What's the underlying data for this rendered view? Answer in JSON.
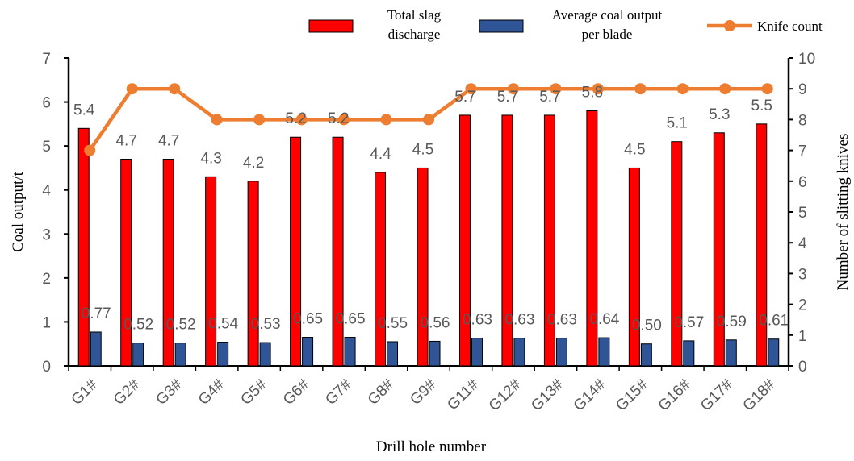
{
  "chart_data": {
    "type": "bar",
    "categories": [
      "G1#",
      "G2#",
      "G3#",
      "G4#",
      "G5#",
      "G6#",
      "G7#",
      "G8#",
      "G9#",
      "G11#",
      "G12#",
      "G13#",
      "G14#",
      "G15#",
      "G16#",
      "G17#",
      "G18#"
    ],
    "series": [
      {
        "name": "Total slag discharge",
        "type": "bar",
        "axis": "left",
        "color": "#ff0000",
        "values": [
          5.4,
          4.7,
          4.7,
          4.3,
          4.2,
          5.2,
          5.2,
          4.4,
          4.5,
          5.7,
          5.7,
          5.7,
          5.8,
          4.5,
          5.1,
          5.3,
          5.5
        ],
        "labels": [
          "5.4",
          "4.7",
          "4.7",
          "4.3",
          "4.2",
          "5.2",
          "5.2",
          "4.4",
          "4.5",
          "5.7",
          "5.7",
          "5.7",
          "5.8",
          "4.5",
          "5.1",
          "5.3",
          "5.5"
        ]
      },
      {
        "name": "Average coal output per blade",
        "name_lines": [
          "Average coal output",
          "per blade"
        ],
        "type": "bar",
        "axis": "left",
        "color": "#2f5597",
        "values": [
          0.77,
          0.52,
          0.52,
          0.54,
          0.53,
          0.65,
          0.65,
          0.55,
          0.56,
          0.63,
          0.63,
          0.63,
          0.64,
          0.5,
          0.57,
          0.59,
          0.61
        ],
        "labels": [
          "0.77",
          "0.52",
          "0.52",
          "0.54",
          "0.53",
          "0.65",
          "0.65",
          "0.55",
          "0.56",
          "0.63",
          "0.63",
          "0.63",
          "0.64",
          "0.50",
          "0.57",
          "0.59",
          "0.61"
        ]
      },
      {
        "name": "Knife count",
        "type": "line",
        "axis": "right",
        "color": "#ed7d31",
        "values": [
          7,
          9,
          9,
          8,
          8,
          8,
          8,
          8,
          8,
          9,
          9,
          9,
          9,
          9,
          9,
          9,
          9
        ]
      }
    ],
    "legend_lines": {
      "total": [
        "Total slag",
        "discharge"
      ]
    },
    "xlabel": "Drill hole number",
    "ylabel": "Coal output/t",
    "y2label": "Number of slitting knives",
    "ylim": [
      0,
      7
    ],
    "y2lim": [
      0,
      10
    ],
    "yticks": [
      "0",
      "1",
      "2",
      "3",
      "4",
      "5",
      "6",
      "7"
    ],
    "y2ticks": [
      "0",
      "1",
      "2",
      "3",
      "4",
      "5",
      "6",
      "7",
      "8",
      "9",
      "10"
    ],
    "legend_position": "top",
    "grid": false
  }
}
